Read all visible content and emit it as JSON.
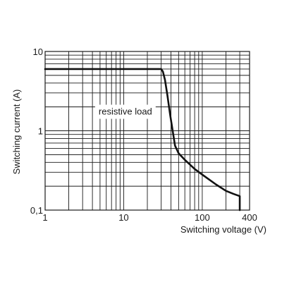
{
  "chart_data": {
    "type": "line",
    "xlabel": "Switching voltage (V)",
    "ylabel": "Switching current (A)",
    "x_scale": "log",
    "y_scale": "log",
    "xlim": [
      1,
      400
    ],
    "ylim": [
      0.1,
      10
    ],
    "x_ticks": [
      {
        "value": 1,
        "label": "1"
      },
      {
        "value": 10,
        "label": "10"
      },
      {
        "value": 100,
        "label": "100"
      },
      {
        "value": 400,
        "label": "400"
      }
    ],
    "y_ticks": [
      {
        "value": 10,
        "label": "10"
      },
      {
        "value": 1,
        "label": "1"
      },
      {
        "value": 0.1,
        "label": "0,1"
      }
    ],
    "grid": true,
    "annotation": {
      "text": "resistive load",
      "x": 4.8,
      "y": 1.6
    },
    "series": [
      {
        "x": [
          1,
          30,
          31.5,
          33.5,
          36,
          39,
          42,
          45,
          50,
          60,
          80,
          100,
          150,
          200,
          250,
          300,
          300
        ],
        "y": [
          6,
          6,
          5.6,
          4.4,
          2.8,
          1.6,
          1.0,
          0.65,
          0.52,
          0.43,
          0.33,
          0.28,
          0.21,
          0.175,
          0.16,
          0.15,
          0.1
        ]
      }
    ]
  }
}
